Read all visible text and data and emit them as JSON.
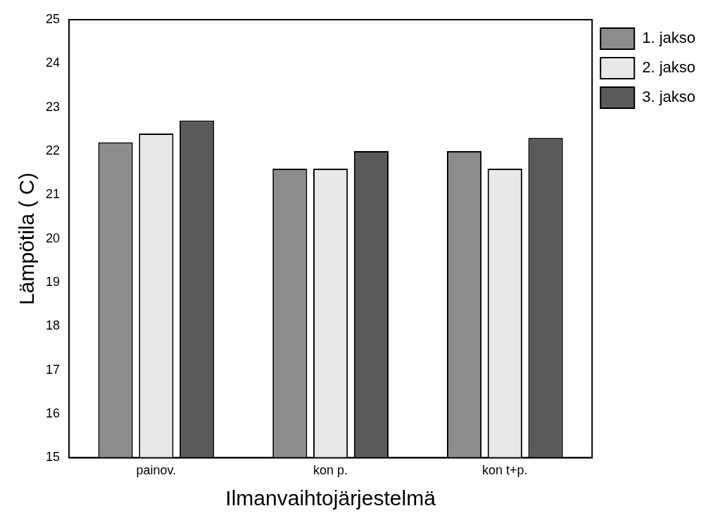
{
  "chart_data": {
    "type": "bar",
    "xlabel": "Ilmanvaihtojärjestelmä",
    "ylabel": "Lämpötila ( C)",
    "categories": [
      "painov.",
      "kon p.",
      "kon t+p."
    ],
    "series": [
      {
        "name": "1. jakso",
        "color": "#8c8c8c",
        "values": [
          22.2,
          21.6,
          22.0
        ]
      },
      {
        "name": "2. jakso",
        "color": "#e8e8e8",
        "values": [
          22.4,
          21.6,
          21.6
        ]
      },
      {
        "name": "3. jakso",
        "color": "#5a5a5a",
        "values": [
          22.7,
          22.0,
          22.3
        ]
      }
    ],
    "ylim": [
      15,
      25
    ],
    "yticks": [
      15,
      16,
      17,
      18,
      19,
      20,
      21,
      22,
      23,
      24,
      25
    ],
    "grid": false,
    "legend": "top right"
  }
}
